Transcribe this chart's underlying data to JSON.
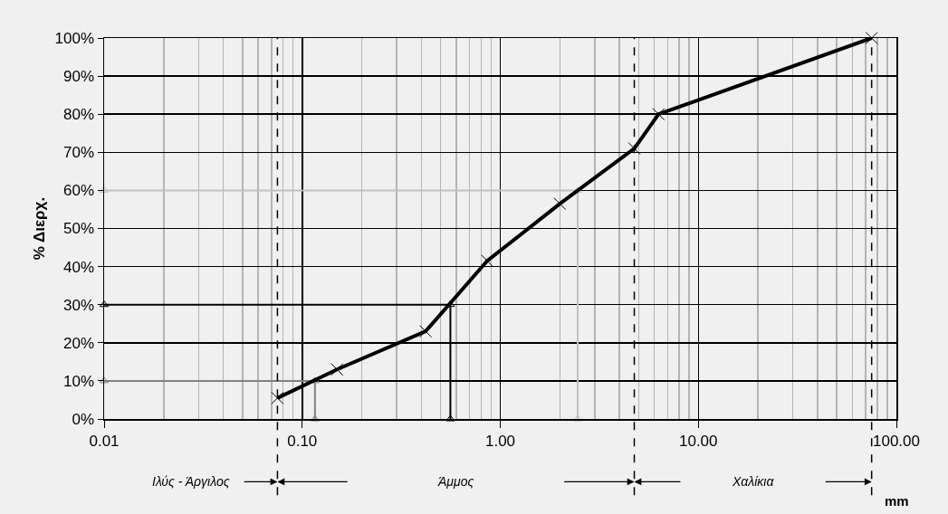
{
  "chart_data": {
    "type": "line",
    "xlabel": "mm",
    "ylabel": "% Διερχ.",
    "log": "x",
    "grid": true,
    "marker": "cross",
    "line_style": "solid",
    "xlim": [
      0.01,
      100
    ],
    "xticks": [
      {
        "value": 0.01,
        "label": "0.01"
      },
      {
        "value": 0.1,
        "label": "0.10"
      },
      {
        "value": 1,
        "label": "1.00"
      },
      {
        "value": 10,
        "label": "10.00"
      },
      {
        "value": 100,
        "label": "100.00"
      }
    ],
    "ylim": [
      0,
      100
    ],
    "yticks": [
      {
        "value": 0,
        "label": "0%"
      },
      {
        "value": 10,
        "label": "10%"
      },
      {
        "value": 20,
        "label": "20%"
      },
      {
        "value": 30,
        "label": "30%"
      },
      {
        "value": 40,
        "label": "40%"
      },
      {
        "value": 50,
        "label": "50%"
      },
      {
        "value": 60,
        "label": "60%"
      },
      {
        "value": 70,
        "label": "70%"
      },
      {
        "value": 80,
        "label": "80%"
      },
      {
        "value": 90,
        "label": "90%"
      },
      {
        "value": 100,
        "label": "100%"
      }
    ],
    "series": [
      {
        "color": "#000000",
        "x": [
          0.075,
          0.15,
          0.42,
          0.86,
          2.0,
          4.75,
          6.3,
          75
        ],
        "values": [
          5.5,
          13,
          23,
          41.5,
          56.5,
          71,
          80,
          100
        ]
      },
      {
        "color": "#808080",
        "marker": "triangle",
        "x": [
          0.01,
          0.116,
          0.116
        ],
        "values": [
          10,
          10,
          0
        ]
      },
      {
        "color": "#000000",
        "marker": "triangle",
        "x": [
          0.01,
          0.56,
          0.56
        ],
        "values": [
          30,
          30,
          0
        ]
      },
      {
        "color": "#c0c0c0",
        "marker": "triangle",
        "x": [
          0.01,
          2.46,
          2.46
        ],
        "values": [
          60,
          60,
          0
        ]
      }
    ],
    "ref_lines": [
      {
        "axis": "x",
        "value": 0.075,
        "line_style": "dashed",
        "color": "#000000"
      },
      {
        "axis": "x",
        "value": 4.75,
        "line_style": "dashed",
        "color": "#000000"
      },
      {
        "axis": "x",
        "value": 75,
        "line_style": "dashed",
        "color": "#000000"
      }
    ],
    "annotations": [
      "Ιλύς - Άργιλος",
      "Άμμος",
      "Χαλίκια"
    ]
  }
}
